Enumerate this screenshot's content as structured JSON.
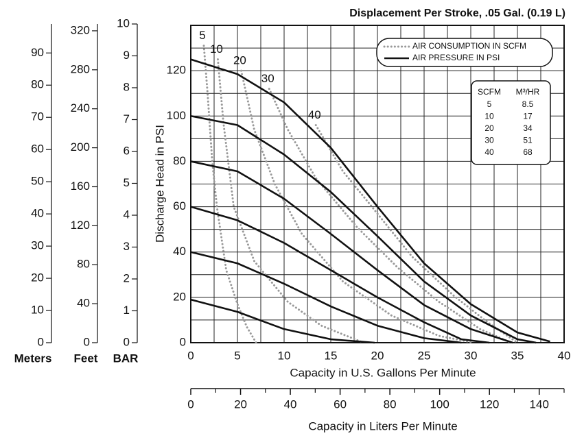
{
  "chart_data": {
    "type": "line",
    "title": "Displacement Per Stroke, .05 Gal. (0.19 L)",
    "gpm_axis": {
      "label": "Capacity in U.S. Gallons Per Minute",
      "xlim": [
        0,
        40
      ],
      "xticks": [
        0,
        5,
        10,
        15,
        20,
        25,
        30,
        35,
        40
      ],
      "grid": [
        0,
        2.5,
        5,
        7.5,
        10,
        12.5,
        15,
        17.5,
        20,
        22.5,
        25,
        27.5,
        30,
        32.5,
        35,
        37.5,
        40
      ]
    },
    "psi_axis": {
      "label": "Discharge Head in PSI",
      "ylim": [
        0,
        140
      ],
      "yticks": [
        0,
        20,
        40,
        60,
        80,
        100,
        120
      ],
      "grid": [
        0,
        10,
        20,
        30,
        40,
        50,
        60,
        70,
        80,
        90,
        100,
        110,
        120,
        130,
        140
      ]
    },
    "liters_axis": {
      "label": "Capacity in Liters Per Minute",
      "xlim": [
        0,
        150
      ],
      "xticks": [
        0,
        20,
        40,
        60,
        80,
        100,
        120,
        140
      ],
      "minor_ticks": [
        10,
        30,
        50,
        70,
        90,
        110,
        130,
        150
      ]
    },
    "meters_axis": {
      "label": "Meters",
      "ylim": [
        0,
        99
      ],
      "yticks": [
        0,
        10,
        20,
        30,
        40,
        50,
        60,
        70,
        80,
        90
      ]
    },
    "feet_axis": {
      "label": "Feet",
      "ylim": [
        0,
        327
      ],
      "yticks": [
        0,
        40,
        80,
        120,
        160,
        200,
        240,
        280,
        320
      ]
    },
    "bar_axis": {
      "label": "BAR",
      "ylim": [
        0,
        10
      ],
      "yticks": [
        0,
        1,
        2,
        3,
        4,
        5,
        6,
        7,
        8,
        9,
        10
      ]
    },
    "legend": [
      "AIR CONSUMPTION IN SCFM",
      "AIR PRESSURE IN PSI"
    ],
    "table": {
      "header": [
        "SCFM",
        "M³/HR"
      ],
      "rows": [
        [
          "5",
          "8.5"
        ],
        [
          "10",
          "17"
        ],
        [
          "20",
          "34"
        ],
        [
          "30",
          "51"
        ],
        [
          "40",
          "68"
        ]
      ]
    },
    "air_pressure_curves": [
      {
        "x": [
          0,
          5,
          10,
          15,
          20,
          25,
          30,
          35,
          38.5
        ],
        "values": [
          125,
          118.5,
          106,
          86,
          60,
          35,
          17,
          4.5,
          0.5
        ]
      },
      {
        "x": [
          0,
          5,
          10,
          15,
          20,
          25,
          30,
          35,
          37
        ],
        "values": [
          100,
          96,
          83,
          66.5,
          47,
          27,
          12,
          1.5,
          0
        ]
      },
      {
        "x": [
          0,
          5,
          10,
          15,
          20,
          25,
          30,
          34.5
        ],
        "values": [
          80,
          75.6,
          63.5,
          48,
          32,
          16.6,
          6,
          0
        ]
      },
      {
        "x": [
          0,
          5,
          10,
          15,
          20,
          25,
          29,
          32
        ],
        "values": [
          60,
          54,
          44,
          32,
          20,
          9,
          1.5,
          0
        ]
      },
      {
        "x": [
          0,
          5,
          10,
          15,
          20,
          25,
          29
        ],
        "values": [
          40,
          35,
          26,
          16,
          7.5,
          2,
          0
        ]
      },
      {
        "x": [
          0,
          5,
          10,
          15,
          19.7
        ],
        "values": [
          19,
          13.6,
          6,
          1.5,
          0
        ]
      }
    ],
    "air_consumption_curves": [
      {
        "name": "5",
        "x": [
          1.4,
          1.8,
          2.3,
          2.8,
          3.8,
          5,
          6,
          7
        ],
        "values": [
          131,
          110,
          80,
          60,
          32,
          17,
          7,
          0
        ]
      },
      {
        "name": "10",
        "x": [
          2.9,
          3.5,
          4.6,
          6.8,
          10.4,
          14,
          18.5
        ],
        "values": [
          125,
          97,
          60,
          36,
          18,
          7.5,
          0
        ]
      },
      {
        "name": "20",
        "x": [
          5.4,
          6.8,
          9,
          11.9,
          16.3,
          21.5,
          26.6,
          30.3
        ],
        "values": [
          120,
          94,
          70,
          48,
          27,
          12,
          3,
          0
        ]
      },
      {
        "name": "30",
        "x": [
          8.4,
          10.4,
          13.4,
          17.8,
          22.2,
          26.6,
          31,
          34.3
        ],
        "values": [
          112,
          94,
          72.6,
          51,
          33,
          18,
          6,
          0
        ]
      },
      {
        "name": "40",
        "x": [
          13.4,
          16.3,
          19.3,
          23.7,
          28.1,
          31.8,
          35
        ],
        "values": [
          96,
          75.6,
          60.5,
          38,
          21,
          9,
          0
        ]
      }
    ]
  }
}
